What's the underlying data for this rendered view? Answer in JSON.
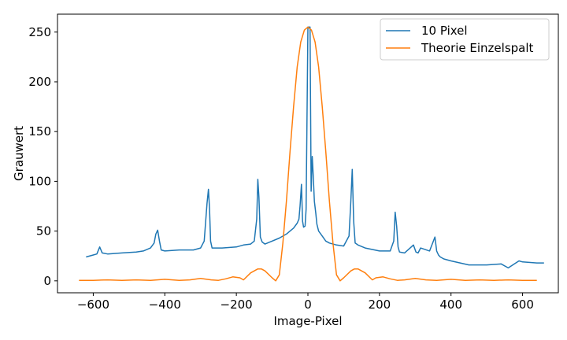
{
  "chart_data": {
    "type": "line",
    "xlabel": "Image-Pixel",
    "ylabel": "Grauwert",
    "xlim": [
      -700,
      700
    ],
    "ylim": [
      -12,
      268
    ],
    "xticks": [
      -600,
      -400,
      -200,
      0,
      200,
      400,
      600
    ],
    "yticks": [
      0,
      50,
      100,
      150,
      200,
      250
    ],
    "grid": false,
    "legend_position": "top-right",
    "series": [
      {
        "name": "10 Pixel",
        "color": "#1f77b4",
        "x": [
          -620,
          -600,
          -590,
          -582,
          -575,
          -560,
          -520,
          -480,
          -460,
          -440,
          -430,
          -425,
          -420,
          -415,
          -410,
          -400,
          -360,
          -320,
          -300,
          -290,
          -282,
          -278,
          -275,
          -272,
          -268,
          -260,
          -240,
          -200,
          -180,
          -160,
          -150,
          -143,
          -140,
          -137,
          -133,
          -128,
          -120,
          -100,
          -80,
          -60,
          -50,
          -40,
          -30,
          -25,
          -22,
          -18,
          -15,
          -12,
          -8,
          -5,
          0,
          3,
          6,
          9,
          12,
          15,
          18,
          22,
          25,
          30,
          40,
          50,
          60,
          80,
          100,
          115,
          120,
          124,
          128,
          132,
          140,
          160,
          200,
          230,
          240,
          244,
          248,
          252,
          256,
          270,
          295,
          302,
          308,
          315,
          340,
          355,
          360,
          365,
          370,
          380,
          400,
          450,
          500,
          540,
          560,
          590,
          600,
          640,
          660
        ],
        "y": [
          24,
          26,
          27,
          34,
          28,
          27,
          28,
          29,
          30,
          33,
          38,
          47,
          51,
          40,
          31,
          30,
          31,
          31,
          33,
          40,
          78,
          92,
          72,
          40,
          33,
          33,
          33,
          34,
          36,
          37,
          40,
          62,
          102,
          84,
          44,
          39,
          37,
          40,
          43,
          47,
          50,
          53,
          58,
          62,
          75,
          97,
          60,
          54,
          55,
          72,
          255,
          255,
          255,
          90,
          125,
          105,
          80,
          68,
          57,
          50,
          45,
          40,
          38,
          36,
          35,
          45,
          80,
          112,
          60,
          38,
          36,
          33,
          30,
          30,
          40,
          69,
          55,
          34,
          29,
          28,
          36,
          29,
          28,
          33,
          30,
          44,
          30,
          26,
          24,
          22,
          20,
          16,
          16,
          17,
          13,
          20,
          19,
          18,
          18
        ]
      },
      {
        "name": "Theorie Einzelspalt",
        "color": "#ff7f0e",
        "x": [
          -640,
          -600,
          -560,
          -520,
          -480,
          -440,
          -400,
          -360,
          -330,
          -300,
          -270,
          -250,
          -230,
          -210,
          -190,
          -180,
          -160,
          -140,
          -130,
          -120,
          -100,
          -90,
          -80,
          -70,
          -60,
          -50,
          -40,
          -30,
          -20,
          -10,
          0,
          10,
          20,
          30,
          40,
          50,
          60,
          70,
          80,
          90,
          100,
          120,
          130,
          140,
          160,
          180,
          190,
          210,
          230,
          250,
          270,
          300,
          330,
          360,
          400,
          440,
          480,
          520,
          560,
          600,
          640
        ],
        "y": [
          0.5,
          0.5,
          1,
          0.5,
          1,
          0.5,
          1.5,
          0.5,
          1,
          2.5,
          1,
          0.5,
          2,
          4,
          3,
          1,
          8,
          12,
          12,
          10,
          3,
          0,
          6,
          38,
          80,
          130,
          175,
          215,
          240,
          252,
          255,
          252,
          240,
          215,
          175,
          130,
          80,
          38,
          6,
          0,
          3,
          10,
          12,
          12,
          8,
          1,
          3,
          4,
          2,
          0.5,
          1,
          2.5,
          1,
          0.5,
          1.5,
          0.5,
          1,
          0.5,
          1,
          0.5,
          0.5
        ]
      }
    ]
  }
}
